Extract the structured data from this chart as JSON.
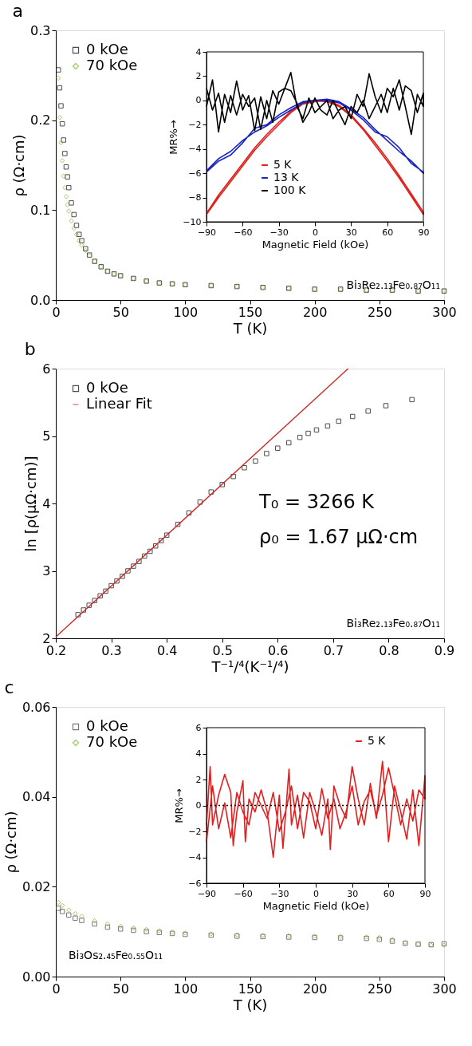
{
  "chart_data": [
    {
      "type": "scatter",
      "title": "a",
      "xlabel": "T (K)",
      "ylabel": "ρ (Ω·cm)",
      "xlim": [
        0,
        300
      ],
      "xticks": [
        0,
        50,
        100,
        150,
        200,
        250,
        300
      ],
      "ylim": [
        0,
        0.3
      ],
      "yticks": [
        {
          "value": 0,
          "label": "0.0"
        },
        0.1,
        0.2,
        0.3
      ],
      "legend": "top left",
      "annotations": [
        "Bi₃Re₂.₁₃Fe₀.₈₇O₁₁"
      ],
      "series": [
        {
          "name": "0 kOe",
          "color": "#000000",
          "marker": "square",
          "x": [
            2,
            3,
            4,
            5,
            6,
            7,
            8,
            9,
            10,
            12,
            14,
            16,
            18,
            20,
            23,
            26,
            30,
            35,
            40,
            45,
            50,
            60,
            70,
            80,
            90,
            100,
            120,
            140,
            160,
            180,
            200,
            220,
            240,
            260,
            280,
            300
          ],
          "values": [
            0.256,
            0.236,
            0.216,
            0.196,
            0.178,
            0.163,
            0.148,
            0.137,
            0.125,
            0.108,
            0.095,
            0.083,
            0.073,
            0.066,
            0.057,
            0.05,
            0.043,
            0.037,
            0.032,
            0.029,
            0.027,
            0.024,
            0.021,
            0.019,
            0.018,
            0.017,
            0.016,
            0.015,
            0.014,
            0.013,
            0.012,
            0.012,
            0.011,
            0.011,
            0.01,
            0.01
          ]
        },
        {
          "name": "70 kOe",
          "color": "#7ab32e",
          "marker": "diamond",
          "x": [
            2,
            3,
            4,
            5,
            6,
            7,
            8,
            9,
            10,
            12,
            14,
            16,
            18,
            20,
            23,
            26,
            30,
            35,
            40,
            45,
            50,
            60,
            70,
            80,
            90,
            100,
            120,
            140,
            160,
            180,
            200,
            220,
            240,
            260,
            280,
            300
          ],
          "values": [
            0.247,
            0.203,
            0.175,
            0.155,
            0.138,
            0.125,
            0.115,
            0.106,
            0.099,
            0.088,
            0.08,
            0.073,
            0.066,
            0.061,
            0.055,
            0.049,
            0.043,
            0.037,
            0.032,
            0.029,
            0.027,
            0.024,
            0.021,
            0.019,
            0.018,
            0.017,
            0.016,
            0.015,
            0.014,
            0.013,
            0.012,
            0.012,
            0.011,
            0.011,
            0.01,
            0.01
          ]
        }
      ]
    },
    {
      "type": "line",
      "xlabel": "Magnetic Field (kOe)",
      "ylabel": "MR%→",
      "xlim": [
        -90,
        90
      ],
      "xticks": [
        -90,
        -60,
        -30,
        0,
        30,
        60,
        90
      ],
      "ylim": [
        -10,
        4
      ],
      "yticks": [
        -10,
        -8,
        -6,
        -4,
        -2,
        0,
        2,
        4
      ],
      "legend": "bottom",
      "series": [
        {
          "name": "5 K",
          "color": "#e0201b",
          "line_style": "solid",
          "x": [
            -90,
            -80,
            -70,
            -60,
            -50,
            -40,
            -30,
            -20,
            -10,
            0,
            10,
            20,
            30,
            40,
            50,
            60,
            70,
            80,
            90,
            90,
            80,
            70,
            60,
            50,
            40,
            30,
            20,
            10,
            0,
            -10,
            -20,
            -30,
            -40,
            -50,
            -60,
            -70,
            -80,
            -90
          ],
          "values": [
            -9.3,
            -7.8,
            -6.5,
            -5.2,
            -3.9,
            -2.8,
            -1.8,
            -0.9,
            -0.2,
            0,
            -0.1,
            -0.5,
            -1.3,
            -2.4,
            -3.7,
            -5.0,
            -6.4,
            -7.9,
            -9.4,
            -9.2,
            -7.7,
            -6.2,
            -4.8,
            -3.5,
            -2.3,
            -1.2,
            -0.4,
            0,
            -0.1,
            -0.3,
            -1.0,
            -2.0,
            -3.0,
            -4.1,
            -5.4,
            -6.7,
            -8.0,
            -9.4
          ]
        },
        {
          "name": "13 K",
          "color": "#1a25c0",
          "line_style": "solid",
          "x": [
            -90,
            -80,
            -70,
            -60,
            -50,
            -40,
            -30,
            -20,
            -10,
            0,
            10,
            20,
            30,
            40,
            50,
            60,
            70,
            80,
            90,
            90,
            80,
            70,
            60,
            50,
            40,
            30,
            20,
            10,
            0,
            -10,
            -20,
            -30,
            -40,
            -50,
            -60,
            -70,
            -80,
            -90
          ],
          "values": [
            -5.9,
            -5.0,
            -4.5,
            -3.5,
            -2.3,
            -2.0,
            -1.2,
            -0.6,
            -0.1,
            0,
            0,
            -0.2,
            -0.8,
            -1.6,
            -2.6,
            -3.0,
            -3.9,
            -5.2,
            -5.9,
            -6.0,
            -5.0,
            -4.2,
            -3.3,
            -2.4,
            -1.4,
            -0.7,
            -0.1,
            0.1,
            0,
            -0.2,
            -0.8,
            -1.4,
            -2.1,
            -2.6,
            -3.3,
            -4.2,
            -4.8,
            -5.8
          ]
        },
        {
          "name": "100 K",
          "color": "#000000",
          "line_style": "solid",
          "x": [
            -90,
            -85,
            -80,
            -75,
            -70,
            -65,
            -60,
            -55,
            -50,
            -45,
            -40,
            -35,
            -30,
            -25,
            -20,
            -15,
            -10,
            -5,
            0,
            5,
            10,
            15,
            20,
            25,
            30,
            35,
            40,
            45,
            50,
            55,
            60,
            65,
            70,
            75,
            80,
            85,
            90,
            90,
            85,
            80,
            75,
            70,
            65,
            60,
            55,
            50,
            45,
            40,
            35,
            30,
            25,
            20,
            15,
            10,
            5,
            0,
            -5,
            -10,
            -15,
            -20,
            -25,
            -30,
            -35,
            -40,
            -45,
            -50,
            -55,
            -60,
            -65,
            -70,
            -75,
            -80,
            -85,
            -90
          ],
          "values": [
            -0.5,
            1.7,
            -2.6,
            0.5,
            -1.0,
            1.6,
            -0.8,
            0.4,
            -2.5,
            0.3,
            -1.5,
            0.8,
            -0.3,
            1.0,
            2.3,
            -0.5,
            -1.5,
            0.2,
            -1.0,
            -0.5,
            0.0,
            -1.5,
            -0.8,
            -0.5,
            -1.5,
            0.5,
            -0.5,
            2.2,
            0.3,
            -1.0,
            1.0,
            0.3,
            1.7,
            -0.5,
            -2.8,
            0.5,
            -0.5,
            0.6,
            -1.0,
            0.8,
            1.2,
            -0.8,
            1.0,
            -1.0,
            0.5,
            -0.5,
            -1.5,
            0.0,
            -1.0,
            -0.5,
            -2.0,
            -1.0,
            0.0,
            -1.2,
            -0.8,
            0.2,
            -1.0,
            -1.8,
            -0.2,
            0.8,
            1.0,
            0.7,
            -1.8,
            0.0,
            -2.4,
            0.2,
            -0.5,
            0.5,
            -1.2,
            0.4,
            -1.8,
            0.6,
            -0.8,
            1.0
          ]
        }
      ]
    },
    {
      "type": "scatter",
      "title": "b",
      "xlabel": "T⁻¹/⁴(K⁻¹/⁴)",
      "ylabel": "ln [ρ(μΩ·cm)]",
      "xlim": [
        0.2,
        0.9
      ],
      "xticks": [
        0.2,
        0.3,
        0.4,
        0.5,
        0.6,
        0.7,
        0.8,
        0.9
      ],
      "ylim": [
        2,
        6
      ],
      "yticks": [
        2,
        3,
        4,
        5,
        6
      ],
      "legend": "top left",
      "annotations": [
        "T₀ = 3266 K",
        "ρ₀ = 1.67 μΩ·cm",
        "Bi₃Re₂.₁₃Fe₀.₈₇O₁₁"
      ],
      "series": [
        {
          "name": "0 kOe",
          "color": "#000000",
          "marker": "square",
          "x": [
            0.24,
            0.25,
            0.26,
            0.27,
            0.28,
            0.29,
            0.3,
            0.31,
            0.32,
            0.33,
            0.34,
            0.35,
            0.36,
            0.37,
            0.38,
            0.39,
            0.4,
            0.42,
            0.44,
            0.46,
            0.48,
            0.5,
            0.52,
            0.54,
            0.56,
            0.58,
            0.6,
            0.62,
            0.64,
            0.655,
            0.67,
            0.69,
            0.71,
            0.735,
            0.763,
            0.795,
            0.842
          ],
          "values": [
            2.35,
            2.42,
            2.49,
            2.56,
            2.63,
            2.7,
            2.78,
            2.85,
            2.92,
            3.0,
            3.07,
            3.14,
            3.22,
            3.29,
            3.37,
            3.45,
            3.53,
            3.69,
            3.86,
            4.02,
            4.17,
            4.28,
            4.4,
            4.53,
            4.63,
            4.74,
            4.82,
            4.9,
            4.98,
            5.04,
            5.09,
            5.15,
            5.22,
            5.29,
            5.37,
            5.45,
            5.54
          ]
        },
        {
          "name": "Linear Fit",
          "type": "line",
          "color": "#cc2a2a",
          "line_style": "solid",
          "x": [
            0.2,
            0.727
          ],
          "values": [
            2.02,
            6.0
          ]
        }
      ]
    },
    {
      "type": "scatter",
      "title": "c",
      "xlabel": "T (K)",
      "ylabel": "ρ (Ω·cm)",
      "xlim": [
        0,
        300
      ],
      "xticks": [
        0,
        50,
        100,
        150,
        200,
        250,
        300
      ],
      "ylim": [
        0,
        0.06
      ],
      "yticks": [
        {
          "value": 0,
          "label": "0.00"
        },
        0.02,
        0.04,
        0.06
      ],
      "legend": "top left",
      "annotations": [
        "Bi₃Os₂.₄₅Fe₀.₅₅O₁₁"
      ],
      "series": [
        {
          "name": "0 kOe",
          "color": "#404040",
          "marker": "square",
          "x": [
            2,
            5,
            10,
            15,
            20,
            30,
            40,
            50,
            60,
            70,
            80,
            90,
            100,
            120,
            140,
            160,
            180,
            200,
            220,
            240,
            250,
            260,
            270,
            280,
            290,
            300
          ],
          "values": [
            0.0152,
            0.0145,
            0.0137,
            0.013,
            0.0125,
            0.0117,
            0.011,
            0.0106,
            0.0103,
            0.01,
            0.0098,
            0.0096,
            0.0094,
            0.0092,
            0.009,
            0.0089,
            0.0088,
            0.0087,
            0.0086,
            0.0085,
            0.0083,
            0.0079,
            0.0074,
            0.0072,
            0.0071,
            0.0073
          ]
        },
        {
          "name": "70 kOe",
          "color": "#7ab32e",
          "marker": "diamond",
          "x": [
            2,
            5,
            10,
            15,
            20,
            30,
            40,
            50,
            60,
            70,
            80,
            90,
            100,
            120,
            140,
            160,
            180,
            200,
            220,
            240,
            250,
            260,
            270,
            280,
            290,
            300
          ],
          "values": [
            0.0165,
            0.0158,
            0.0148,
            0.014,
            0.0134,
            0.0124,
            0.0117,
            0.0112,
            0.0108,
            0.0105,
            0.0102,
            0.0099,
            0.0097,
            0.0095,
            0.0093,
            0.0092,
            0.0091,
            0.009,
            0.0089,
            0.0088,
            0.0087,
            0.0082,
            0.0076,
            0.0072,
            0.007,
            0.007
          ]
        }
      ]
    },
    {
      "type": "line",
      "xlabel": "Magnetic Field (kOe)",
      "ylabel": "MR%→",
      "xlim": [
        -90,
        90
      ],
      "xticks": [
        -90,
        -60,
        -30,
        0,
        30,
        60,
        90
      ],
      "ylim": [
        -6,
        6
      ],
      "yticks": [
        -6,
        -4,
        -2,
        0,
        2,
        4,
        6
      ],
      "legend": "top right",
      "ref_lines": [
        {
          "axis": "y",
          "value": 0,
          "color": "#000000",
          "line_style": "dotted"
        }
      ],
      "series": [
        {
          "name": "5 K",
          "color": "#e32020",
          "line_style": "solid",
          "x": [
            -90,
            -87,
            -85,
            -80,
            -75,
            -70,
            -68,
            -65,
            -60,
            -58,
            -55,
            -50,
            -45,
            -40,
            -35,
            -30,
            -27,
            -22,
            -20,
            -15,
            -10,
            -5,
            0,
            5,
            10,
            12,
            15,
            20,
            25,
            30,
            35,
            40,
            45,
            50,
            55,
            60,
            65,
            70,
            75,
            80,
            85,
            90,
            90,
            85,
            80,
            75,
            70,
            65,
            60,
            55,
            50,
            45,
            40,
            35,
            30,
            25,
            20,
            15,
            10,
            5,
            0,
            -5,
            -10,
            -15,
            -20,
            -25,
            -30,
            -35,
            -40,
            -45,
            -50,
            -55,
            -60,
            -65,
            -70,
            -75,
            -80,
            -85,
            -90
          ],
          "values": [
            -1.5,
            3.0,
            -1.5,
            0.8,
            2.4,
            1.0,
            -3.1,
            -0.5,
            1.9,
            -2.8,
            0.5,
            -0.5,
            1.2,
            -0.5,
            -4.0,
            0.8,
            -3.3,
            2.8,
            -1.5,
            0.8,
            -2.5,
            1.0,
            -0.5,
            -2.3,
            0.5,
            -3.4,
            1.5,
            0.0,
            -1.0,
            3.0,
            0.5,
            -1.5,
            1.7,
            -1.0,
            3.4,
            -2.8,
            1.5,
            -0.5,
            -2.6,
            1.2,
            -3.1,
            2.3,
            0.5,
            1.2,
            -1.2,
            0.5,
            -1.5,
            0.8,
            2.9,
            0.8,
            -0.8,
            1.2,
            0.3,
            -1.5,
            1.5,
            -0.5,
            -1.8,
            0.5,
            -1.0,
            1.3,
            -1.8,
            0.3,
            1.0,
            -1.8,
            1.5,
            -0.5,
            -2.0,
            1.0,
            -1.0,
            0.0,
            1.0,
            -1.5,
            -0.5,
            1.0,
            -2.5,
            0.2,
            -1.8,
            1.5,
            -2.8
          ]
        }
      ]
    }
  ]
}
